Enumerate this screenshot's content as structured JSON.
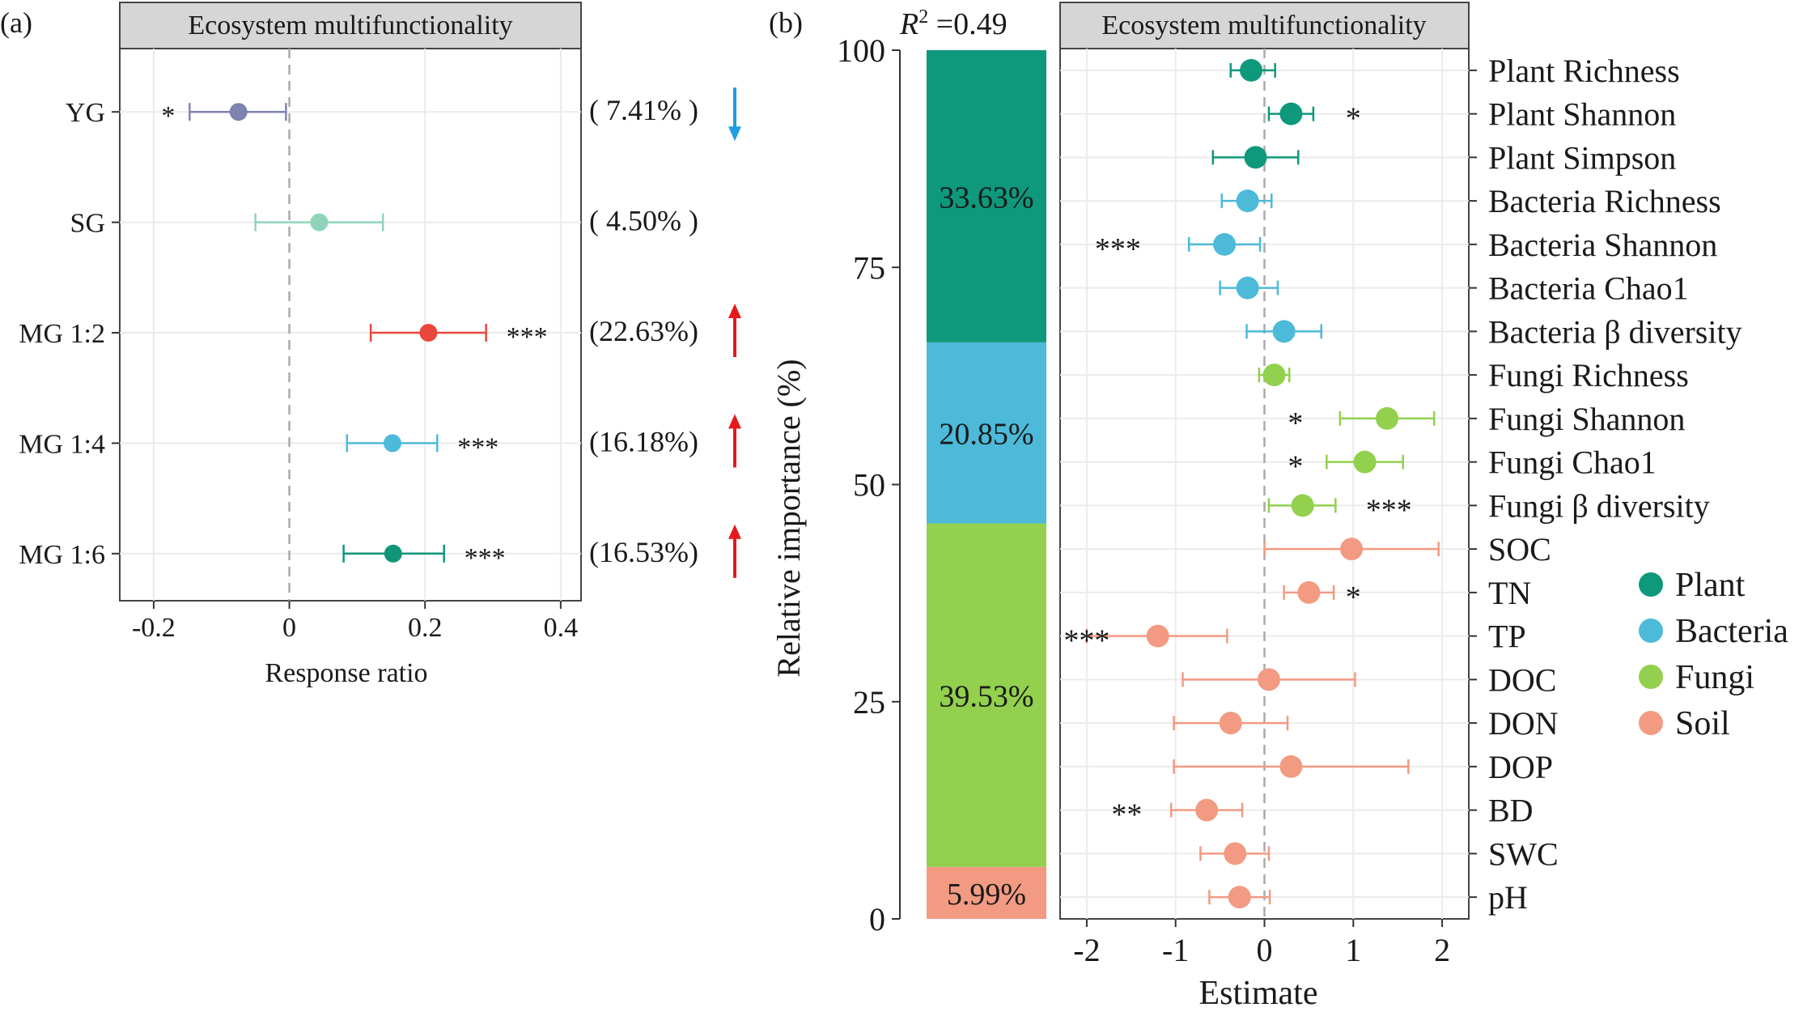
{
  "chart_data": [
    {
      "type": "forest",
      "panel_label": "(a)",
      "title": "Ecosystem multifunctionality",
      "xlabel": "Response ratio",
      "xlim": [
        -0.25,
        0.43
      ],
      "xticks": [
        -0.2,
        0,
        0.2,
        0.4
      ],
      "xtick_labels": [
        "-0.2",
        "0",
        "0.2",
        "0.4"
      ],
      "zero_line": true,
      "rows": [
        {
          "label": "YG",
          "estimate": -0.075,
          "low": -0.147,
          "high": -0.005,
          "sig": "*",
          "sig_side": "left",
          "percent": "( 7.41% )",
          "arrow": "down",
          "color": "#7f83b0"
        },
        {
          "label": "SG",
          "estimate": 0.044,
          "low": -0.05,
          "high": 0.138,
          "sig": "",
          "sig_side": "right",
          "percent": "( 4.50% )",
          "arrow": "none",
          "color": "#8fd4b9"
        },
        {
          "label": "MG 1:2",
          "estimate": 0.205,
          "low": 0.12,
          "high": 0.29,
          "sig": "***",
          "sig_side": "right",
          "percent": "(22.63%)",
          "arrow": "up",
          "color": "#e8473a"
        },
        {
          "label": "MG 1:4",
          "estimate": 0.152,
          "low": 0.085,
          "high": 0.218,
          "sig": "***",
          "sig_side": "right",
          "percent": "(16.18%)",
          "arrow": "up",
          "color": "#4cbad8"
        },
        {
          "label": "MG 1:6",
          "estimate": 0.153,
          "low": 0.08,
          "high": 0.228,
          "sig": "***",
          "sig_side": "right",
          "percent": "(16.53%)",
          "arrow": "up",
          "color": "#10957a"
        }
      ],
      "arrow_colors": {
        "up": "#e41a1c",
        "down": "#1f9de0"
      }
    },
    {
      "type": "stacked-bar",
      "panel_label": "(b)",
      "r2_label": "R",
      "r2_sup": "2",
      "r2_value": " =0.49",
      "ylabel": "Relative importance (%)",
      "ylim": [
        0,
        100
      ],
      "yticks": [
        0,
        25,
        50,
        75,
        100
      ],
      "segments": [
        {
          "group": "Soil",
          "value": 5.99,
          "label": "5.99%",
          "color": "#f29a82"
        },
        {
          "group": "Fungi",
          "value": 39.53,
          "label": "39.53%",
          "color": "#92d04d"
        },
        {
          "group": "Bacteria",
          "value": 20.85,
          "label": "20.85%",
          "color": "#4cbad8"
        },
        {
          "group": "Plant",
          "value": 33.63,
          "label": "33.63%",
          "color": "#0e987c"
        }
      ]
    },
    {
      "type": "forest",
      "title": "Ecosystem multifunctionality",
      "xlabel": "Estimate",
      "xlim": [
        -2.3,
        2.3
      ],
      "xticks": [
        -2,
        -1,
        0,
        1,
        2
      ],
      "xtick_labels": [
        "-2",
        "-1",
        "0",
        "1",
        "2"
      ],
      "zero_line": true,
      "groups": [
        {
          "name": "Plant",
          "color": "#0e987c"
        },
        {
          "name": "Bacteria",
          "color": "#4cbad8"
        },
        {
          "name": "Fungi",
          "color": "#92d04d"
        },
        {
          "name": "Soil",
          "color": "#f29a82"
        }
      ],
      "rows": [
        {
          "label": "Plant Richness",
          "group": "Plant",
          "estimate": -0.15,
          "low": -0.38,
          "high": 0.12,
          "sig": "",
          "sig_x": 0
        },
        {
          "label": "Plant Shannon",
          "group": "Plant",
          "estimate": 0.3,
          "low": 0.05,
          "high": 0.55,
          "sig": "*",
          "sig_x": 1.0
        },
        {
          "label": "Plant Simpson",
          "group": "Plant",
          "estimate": -0.1,
          "low": -0.58,
          "high": 0.38,
          "sig": "",
          "sig_x": 0
        },
        {
          "label": "Bacteria Richness",
          "group": "Bacteria",
          "estimate": -0.19,
          "low": -0.48,
          "high": 0.08,
          "sig": "",
          "sig_x": 0
        },
        {
          "label": "Bacteria Shannon",
          "group": "Bacteria",
          "estimate": -0.45,
          "low": -0.85,
          "high": -0.05,
          "sig": "***",
          "sig_x": -1.65
        },
        {
          "label": "Bacteria Chao1",
          "group": "Bacteria",
          "estimate": -0.19,
          "low": -0.5,
          "high": 0.15,
          "sig": "",
          "sig_x": 0
        },
        {
          "label": "Bacteria β diversity",
          "group": "Bacteria",
          "estimate": 0.22,
          "low": -0.2,
          "high": 0.64,
          "sig": "",
          "sig_x": 0
        },
        {
          "label": "Fungi Richness",
          "group": "Fungi",
          "estimate": 0.11,
          "low": -0.06,
          "high": 0.28,
          "sig": "",
          "sig_x": 0
        },
        {
          "label": "Fungi Shannon",
          "group": "Fungi",
          "estimate": 1.38,
          "low": 0.85,
          "high": 1.91,
          "sig": "*",
          "sig_x": 0.35
        },
        {
          "label": "Fungi Chao1",
          "group": "Fungi",
          "estimate": 1.13,
          "low": 0.7,
          "high": 1.56,
          "sig": "*",
          "sig_x": 0.35
        },
        {
          "label": "Fungi β diversity",
          "group": "Fungi",
          "estimate": 0.43,
          "low": 0.05,
          "high": 0.8,
          "sig": "***",
          "sig_x": 1.4
        },
        {
          "label": "SOC",
          "group": "Soil",
          "estimate": 0.98,
          "low": 0.0,
          "high": 1.96,
          "sig": "",
          "sig_x": 0
        },
        {
          "label": "TN",
          "group": "Soil",
          "estimate": 0.5,
          "low": 0.22,
          "high": 0.78,
          "sig": "*",
          "sig_x": 1.0
        },
        {
          "label": "TP",
          "group": "Soil",
          "estimate": -1.2,
          "low": -2.0,
          "high": -0.42,
          "sig": "***",
          "sig_x": -2.0
        },
        {
          "label": "DOC",
          "group": "Soil",
          "estimate": 0.05,
          "low": -0.92,
          "high": 1.02,
          "sig": "",
          "sig_x": 0
        },
        {
          "label": "DON",
          "group": "Soil",
          "estimate": -0.38,
          "low": -1.02,
          "high": 0.26,
          "sig": "",
          "sig_x": 0
        },
        {
          "label": "DOP",
          "group": "Soil",
          "estimate": 0.3,
          "low": -1.02,
          "high": 1.62,
          "sig": "",
          "sig_x": 0
        },
        {
          "label": "BD",
          "group": "Soil",
          "estimate": -0.65,
          "low": -1.05,
          "high": -0.25,
          "sig": "**",
          "sig_x": -1.55
        },
        {
          "label": "SWC",
          "group": "Soil",
          "estimate": -0.33,
          "low": -0.72,
          "high": 0.05,
          "sig": "",
          "sig_x": 0
        },
        {
          "label": "pH",
          "group": "Soil",
          "estimate": -0.28,
          "low": -0.62,
          "high": 0.06,
          "sig": "",
          "sig_x": 0
        }
      ]
    }
  ]
}
